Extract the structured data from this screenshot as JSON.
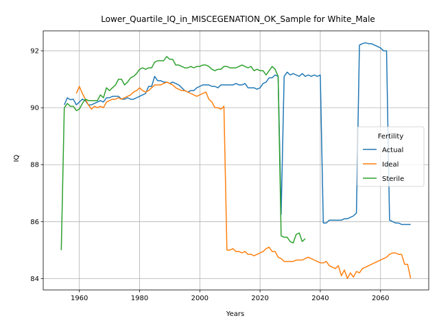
{
  "chart_data": {
    "type": "line",
    "title": "Lower_Quartile_IQ_in_MISCEGENATION_OK_Sample for White_Male",
    "xlabel": "Years",
    "ylabel": "IQ",
    "xlim": [
      1948,
      2076
    ],
    "ylim": [
      83.6,
      92.7
    ],
    "xticks": [
      1960,
      1980,
      2000,
      2020,
      2040,
      2060
    ],
    "yticks": [
      84,
      86,
      88,
      90,
      92
    ],
    "grid": true,
    "legend": {
      "title": "Fertility",
      "placement": "center-right"
    },
    "series": [
      {
        "name": "Actual",
        "color": "#1f77b4",
        "x": [
          1955,
          1956,
          1957,
          1958,
          1959,
          1960,
          1961,
          1962,
          1963,
          1964,
          1965,
          1966,
          1967,
          1968,
          1969,
          1970,
          1971,
          1972,
          1973,
          1974,
          1975,
          1976,
          1977,
          1978,
          1979,
          1980,
          1981,
          1982,
          1983,
          1984,
          1985,
          1986,
          1987,
          1988,
          1989,
          1990,
          1991,
          1992,
          1993,
          1994,
          1995,
          1996,
          1997,
          1998,
          1999,
          2000,
          2001,
          2002,
          2003,
          2004,
          2005,
          2006,
          2007,
          2008,
          2009,
          2010,
          2011,
          2012,
          2013,
          2014,
          2015,
          2016,
          2017,
          2018,
          2019,
          2020,
          2021,
          2022,
          2023,
          2024,
          2025,
          2026,
          2027,
          2028,
          2029,
          2030,
          2031,
          2032,
          2033,
          2034,
          2035,
          2036,
          2037,
          2038,
          2039,
          2040,
          2041,
          2042,
          2043,
          2044,
          2045,
          2046,
          2047,
          2048,
          2049,
          2050,
          2051,
          2052,
          2053,
          2054,
          2055,
          2056,
          2057,
          2058,
          2059,
          2060,
          2061,
          2062,
          2063,
          2064,
          2065,
          2066,
          2067,
          2068,
          2069,
          2070
        ],
        "y": [
          90.1,
          90.35,
          90.28,
          90.3,
          90.1,
          90.2,
          90.3,
          90.25,
          90.1,
          90.1,
          90.15,
          90.2,
          90.25,
          90.2,
          90.35,
          90.35,
          90.4,
          90.4,
          90.4,
          90.3,
          90.3,
          90.35,
          90.3,
          90.3,
          90.35,
          90.4,
          90.45,
          90.5,
          90.75,
          90.75,
          91.1,
          90.95,
          90.95,
          90.9,
          90.9,
          90.85,
          90.9,
          90.85,
          90.8,
          90.7,
          90.6,
          90.55,
          90.6,
          90.6,
          90.7,
          90.75,
          90.8,
          90.8,
          90.8,
          90.75,
          90.75,
          90.7,
          90.8,
          90.8,
          90.8,
          90.8,
          90.8,
          90.85,
          90.8,
          90.8,
          90.85,
          90.7,
          90.7,
          90.7,
          90.65,
          90.7,
          90.85,
          90.9,
          91.05,
          91.05,
          91.15,
          91.1,
          86.25,
          91.1,
          91.25,
          91.15,
          91.2,
          91.15,
          91.1,
          91.2,
          91.1,
          91.15,
          91.1,
          91.15,
          91.1,
          91.15,
          85.95,
          85.95,
          86.05,
          86.05,
          86.05,
          86.05,
          86.05,
          86.1,
          86.1,
          86.15,
          86.2,
          86.3,
          92.2,
          92.25,
          92.28,
          92.25,
          92.25,
          92.2,
          92.15,
          92.1,
          92.0,
          92.0,
          86.05,
          86.0,
          85.95,
          85.95,
          85.9,
          85.9,
          85.9,
          85.9
        ]
      },
      {
        "name": "Ideal",
        "color": "#ff7f0e",
        "x": [
          1959,
          1960,
          1961,
          1962,
          1963,
          1964,
          1965,
          1966,
          1967,
          1968,
          1969,
          1970,
          1971,
          1972,
          1973,
          1974,
          1975,
          1976,
          1977,
          1978,
          1979,
          1980,
          1981,
          1982,
          1983,
          1984,
          1985,
          1986,
          1987,
          1988,
          1989,
          1990,
          1991,
          1992,
          1993,
          1994,
          1995,
          1996,
          1997,
          1998,
          1999,
          2000,
          2001,
          2002,
          2003,
          2004,
          2005,
          2006,
          2007,
          2008,
          2009,
          2010,
          2011,
          2012,
          2013,
          2014,
          2015,
          2016,
          2017,
          2018,
          2019,
          2020,
          2021,
          2022,
          2023,
          2024,
          2025,
          2026,
          2027,
          2028,
          2029,
          2030,
          2031,
          2032,
          2033,
          2034,
          2035,
          2036,
          2037,
          2038,
          2039,
          2040,
          2041,
          2042,
          2043,
          2044,
          2045,
          2046,
          2047,
          2048,
          2049,
          2050,
          2051,
          2052,
          2053,
          2054,
          2055,
          2056,
          2057,
          2058,
          2059,
          2060,
          2061,
          2062,
          2063,
          2064,
          2065,
          2066,
          2067,
          2068,
          2069,
          2070
        ],
        "y": [
          90.5,
          90.75,
          90.5,
          90.3,
          90.1,
          89.95,
          90.05,
          90.0,
          90.05,
          90.0,
          90.2,
          90.25,
          90.3,
          90.3,
          90.35,
          90.3,
          90.35,
          90.4,
          90.45,
          90.55,
          90.6,
          90.7,
          90.6,
          90.55,
          90.6,
          90.7,
          90.8,
          90.8,
          90.8,
          90.85,
          90.9,
          90.85,
          90.8,
          90.7,
          90.65,
          90.6,
          90.6,
          90.55,
          90.5,
          90.45,
          90.4,
          90.45,
          90.5,
          90.55,
          90.3,
          90.2,
          90.0,
          90.0,
          89.95,
          90.05,
          85.0,
          85.0,
          85.05,
          84.95,
          84.95,
          84.9,
          84.95,
          84.85,
          84.85,
          84.8,
          84.85,
          84.9,
          84.95,
          85.05,
          85.1,
          84.95,
          84.95,
          84.75,
          84.7,
          84.6,
          84.6,
          84.6,
          84.6,
          84.65,
          84.65,
          84.65,
          84.7,
          84.75,
          84.7,
          84.65,
          84.6,
          84.55,
          84.55,
          84.6,
          84.45,
          84.4,
          84.35,
          84.45,
          84.1,
          84.3,
          84.0,
          84.2,
          84.05,
          84.25,
          84.2,
          84.35,
          84.4,
          84.45,
          84.5,
          84.55,
          84.6,
          84.65,
          84.7,
          84.75,
          84.85,
          84.9,
          84.9,
          84.85,
          84.85,
          84.5,
          84.5,
          84.0
        ]
      },
      {
        "name": "Sterile",
        "color": "#2ca02c",
        "x": [
          1954,
          1955,
          1956,
          1957,
          1958,
          1959,
          1960,
          1961,
          1962,
          1963,
          1964,
          1965,
          1966,
          1967,
          1968,
          1969,
          1970,
          1971,
          1972,
          1973,
          1974,
          1975,
          1976,
          1977,
          1978,
          1979,
          1980,
          1981,
          1982,
          1983,
          1984,
          1985,
          1986,
          1987,
          1988,
          1989,
          1990,
          1991,
          1992,
          1993,
          1994,
          1995,
          1996,
          1997,
          1998,
          1999,
          2000,
          2001,
          2002,
          2003,
          2004,
          2005,
          2006,
          2007,
          2008,
          2009,
          2010,
          2011,
          2012,
          2013,
          2014,
          2015,
          2016,
          2017,
          2018,
          2019,
          2020,
          2021,
          2022,
          2023,
          2024,
          2025,
          2026,
          2027,
          2028,
          2029,
          2030,
          2031,
          2032,
          2033,
          2034,
          2035
        ],
        "y": [
          85.0,
          90.0,
          90.15,
          90.05,
          90.05,
          89.9,
          89.95,
          90.15,
          90.3,
          90.25,
          90.25,
          90.25,
          90.25,
          90.45,
          90.35,
          90.7,
          90.6,
          90.7,
          90.8,
          91.0,
          91.0,
          90.8,
          90.9,
          91.05,
          91.1,
          91.2,
          91.35,
          91.4,
          91.35,
          91.4,
          91.4,
          91.6,
          91.65,
          91.65,
          91.65,
          91.8,
          91.7,
          91.7,
          91.5,
          91.5,
          91.45,
          91.4,
          91.4,
          91.45,
          91.4,
          91.45,
          91.45,
          91.5,
          91.5,
          91.45,
          91.35,
          91.3,
          91.35,
          91.35,
          91.45,
          91.45,
          91.4,
          91.4,
          91.4,
          91.45,
          91.5,
          91.45,
          91.4,
          91.45,
          91.3,
          91.35,
          91.3,
          91.3,
          91.15,
          91.3,
          91.45,
          91.35,
          91.1,
          85.5,
          85.45,
          85.45,
          85.3,
          85.25,
          85.55,
          85.6,
          85.3,
          85.4
        ]
      }
    ]
  }
}
